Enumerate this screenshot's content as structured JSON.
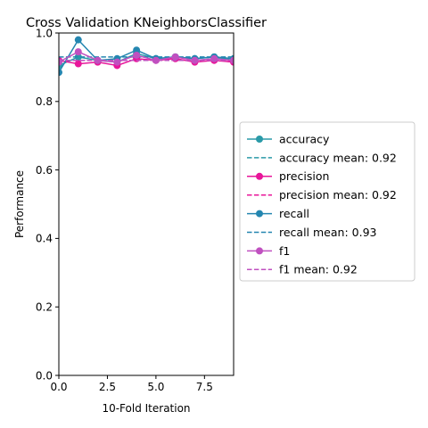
{
  "chart_data": {
    "type": "line",
    "title": "Cross Validation KNeighborsClassifier",
    "xlabel": "10-Fold Iteration",
    "ylabel": "Performance",
    "xlim": [
      0,
      9
    ],
    "ylim": [
      0.0,
      1.0
    ],
    "xticks": [
      "0.0",
      "2.5",
      "5.0",
      "7.5"
    ],
    "xtick_values": [
      0,
      2.5,
      5,
      7.5
    ],
    "yticks": [
      "0.0",
      "0.2",
      "0.4",
      "0.6",
      "0.8",
      "1.0"
    ],
    "ytick_values": [
      0,
      0.2,
      0.4,
      0.6,
      0.8,
      1.0
    ],
    "grid": false,
    "legend_position": "right-outside",
    "x": [
      0,
      1,
      2,
      3,
      4,
      5,
      6,
      7,
      8,
      9
    ],
    "series": [
      {
        "name": "accuracy",
        "mean_label": "accuracy mean: 0.92",
        "mean": 0.92,
        "color": "#2a9aa8",
        "values": [
          0.905,
          0.93,
          0.92,
          0.915,
          0.94,
          0.925,
          0.93,
          0.925,
          0.93,
          0.92
        ]
      },
      {
        "name": "precision",
        "mean_label": "precision mean: 0.92",
        "mean": 0.92,
        "color": "#e8169a",
        "values": [
          0.92,
          0.91,
          0.915,
          0.905,
          0.925,
          0.92,
          0.925,
          0.915,
          0.92,
          0.915
        ]
      },
      {
        "name": "recall",
        "mean_label": "recall mean: 0.93",
        "mean": 0.93,
        "color": "#2486b0",
        "values": [
          0.885,
          0.98,
          0.92,
          0.925,
          0.95,
          0.925,
          0.93,
          0.925,
          0.93,
          0.925
        ]
      },
      {
        "name": "f1",
        "mean_label": "f1 mean: 0.92",
        "mean": 0.92,
        "color": "#c050c0",
        "values": [
          0.915,
          0.945,
          0.92,
          0.915,
          0.935,
          0.92,
          0.93,
          0.92,
          0.925,
          0.92
        ]
      }
    ]
  }
}
